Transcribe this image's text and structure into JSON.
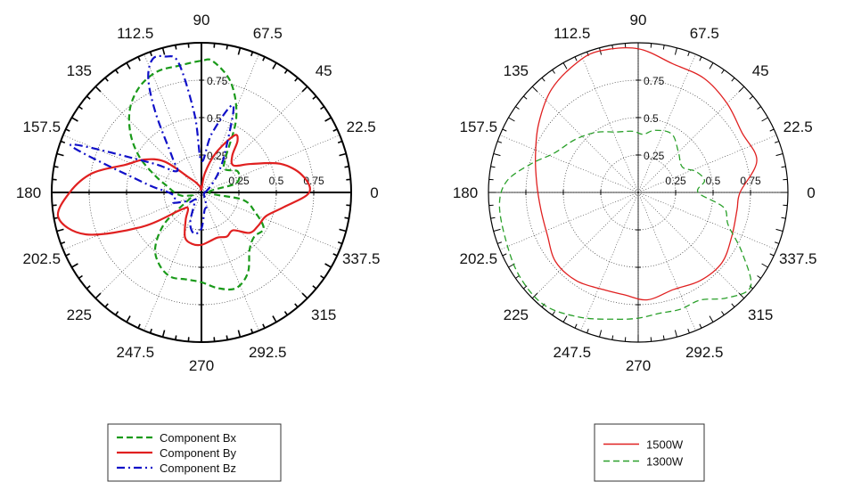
{
  "chart_data": [
    {
      "type": "polar-line",
      "angle_unit": "degrees",
      "rlim": [
        0,
        1
      ],
      "angle_ticks": [
        "0",
        "22.5",
        "45",
        "67.5",
        "90",
        "112.5",
        "135",
        "157.5",
        "180",
        "202.5",
        "225",
        "247.5",
        "270",
        "292.5",
        "315",
        "337.5"
      ],
      "radial_ticks": [
        "0.25",
        "0.5",
        "0.75"
      ],
      "grid": true,
      "legend": {
        "placement": "bottom"
      },
      "series": [
        {
          "name": "Component Bx",
          "color": "#1a9a1a",
          "dash": "dashed",
          "theta": [
            0,
            15,
            30,
            45,
            55,
            65,
            75,
            85,
            90,
            100,
            110,
            120,
            130,
            140,
            150,
            160,
            170,
            180,
            190,
            200,
            210,
            220,
            230,
            240,
            250,
            260,
            270,
            280,
            290,
            300,
            310,
            320,
            330,
            340,
            350,
            360
          ],
          "r": [
            0.05,
            0.24,
            0.28,
            0.22,
            0.28,
            0.55,
            0.76,
            0.88,
            0.88,
            0.86,
            0.86,
            0.82,
            0.74,
            0.62,
            0.48,
            0.33,
            0.23,
            0.18,
            0.13,
            0.06,
            0.1,
            0.32,
            0.48,
            0.56,
            0.6,
            0.59,
            0.6,
            0.65,
            0.68,
            0.62,
            0.5,
            0.46,
            0.48,
            0.38,
            0.28,
            0.05
          ]
        },
        {
          "name": "Component By",
          "color": "#e02020",
          "dash": "solid",
          "theta": [
            0,
            10,
            20,
            30,
            40,
            50,
            55,
            60,
            70,
            80,
            90,
            100,
            110,
            120,
            130,
            140,
            150,
            160,
            170,
            180,
            190,
            200,
            210,
            220,
            230,
            240,
            250,
            260,
            270,
            280,
            290,
            300,
            310,
            320,
            330,
            340,
            350,
            360
          ],
          "r": [
            0.72,
            0.68,
            0.56,
            0.38,
            0.28,
            0.32,
            0.42,
            0.44,
            0.28,
            0.13,
            0.02,
            0.04,
            0.05,
            0.08,
            0.13,
            0.32,
            0.44,
            0.54,
            0.74,
            0.88,
            0.97,
            0.82,
            0.46,
            0.18,
            0.14,
            0.21,
            0.32,
            0.35,
            0.35,
            0.33,
            0.32,
            0.34,
            0.33,
            0.42,
            0.44,
            0.46,
            0.56,
            0.72
          ]
        },
        {
          "name": "Component Bz",
          "color": "#1010c8",
          "dash": "dashdot",
          "theta": [
            0,
            10,
            20,
            30,
            40,
            50,
            60,
            70,
            80,
            90,
            95,
            100,
            105,
            110,
            115,
            120,
            130,
            140,
            150,
            160,
            170,
            180,
            190,
            200,
            210,
            220,
            230,
            240,
            250,
            260,
            270,
            280,
            290,
            300,
            310,
            320,
            330,
            340,
            350,
            360
          ],
          "r": [
            0.02,
            0.03,
            0.04,
            0.06,
            0.1,
            0.18,
            0.32,
            0.62,
            0.4,
            0.21,
            0.52,
            0.88,
            0.94,
            0.95,
            0.84,
            0.61,
            0.3,
            0.22,
            0.4,
            0.93,
            0.4,
            0.22,
            0.18,
            0.2,
            0.12,
            0.1,
            0.06,
            0.1,
            0.22,
            0.28,
            0.24,
            0.12,
            0.1,
            0.04,
            0.03,
            0.02,
            0.02,
            0.02,
            0.02,
            0.02
          ]
        }
      ]
    },
    {
      "type": "polar-line",
      "angle_unit": "degrees",
      "rlim": [
        0,
        1
      ],
      "angle_ticks": [
        "0",
        "22.5",
        "45",
        "67.5",
        "90",
        "112.5",
        "135",
        "157.5",
        "180",
        "202.5",
        "225",
        "247.5",
        "270",
        "292.5",
        "315",
        "337.5"
      ],
      "radial_ticks": [
        "0.25",
        "0.5",
        "0.75"
      ],
      "grid": true,
      "legend": {
        "placement": "bottom"
      },
      "series": [
        {
          "name": "1500W",
          "color": "#e02020",
          "dash": "solid",
          "theta": [
            0,
            15,
            30,
            45,
            60,
            75,
            90,
            105,
            115,
            130,
            145,
            160,
            175,
            190,
            205,
            220,
            235,
            250,
            262,
            275,
            290,
            305,
            320,
            335,
            350,
            360
          ],
          "r": [
            0.68,
            0.82,
            0.8,
            0.84,
            0.88,
            0.89,
            0.96,
            0.98,
            0.96,
            0.9,
            0.81,
            0.73,
            0.68,
            0.66,
            0.67,
            0.72,
            0.72,
            0.69,
            0.69,
            0.72,
            0.69,
            0.72,
            0.73,
            0.69,
            0.67,
            0.68
          ]
        },
        {
          "name": "1300W",
          "color": "#2aa02a",
          "dash": "dashed",
          "theta": [
            0,
            10,
            20,
            30,
            45,
            60,
            75,
            85,
            95,
            110,
            125,
            140,
            155,
            165,
            175,
            185,
            200,
            215,
            230,
            245,
            260,
            270,
            280,
            290,
            300,
            310,
            320,
            330,
            340,
            350,
            360
          ],
          "r": [
            0.4,
            0.45,
            0.41,
            0.34,
            0.38,
            0.45,
            0.43,
            0.39,
            0.41,
            0.43,
            0.49,
            0.55,
            0.62,
            0.74,
            0.88,
            0.93,
            0.94,
            0.97,
            0.98,
            0.92,
            0.86,
            0.84,
            0.82,
            0.83,
            0.83,
            0.92,
            0.98,
            0.8,
            0.64,
            0.58,
            0.4
          ]
        }
      ]
    }
  ]
}
